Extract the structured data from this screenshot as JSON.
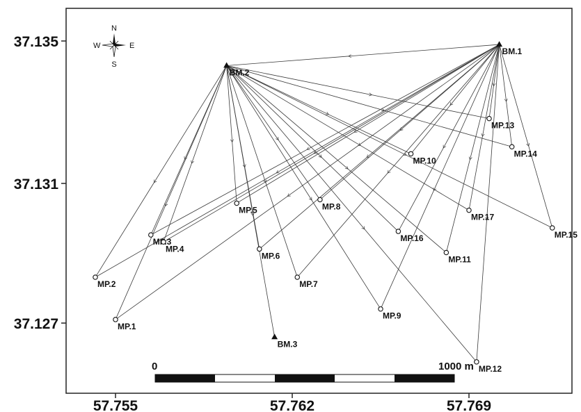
{
  "axes": {
    "x_ticks": [
      "57.755",
      "57.762",
      "57.769"
    ],
    "y_ticks": [
      "37.135",
      "37.131",
      "37.127"
    ]
  },
  "compass": {
    "north": "N",
    "south": "S",
    "east": "E",
    "west": "W",
    "icon": "compass-rose-icon"
  },
  "scale_bar": {
    "start_label": "0",
    "end_label": "1000 m",
    "segments": 5
  },
  "benchmarks": [
    {
      "id": "bm1",
      "label": "BM.1",
      "lon": 57.7702,
      "lat": 37.1349
    },
    {
      "id": "bm2",
      "label": "BM.2",
      "lon": 57.7594,
      "lat": 37.1343
    },
    {
      "id": "bm3",
      "label": "BM.3",
      "lon": 57.7613,
      "lat": 37.1266
    }
  ],
  "monitoring_points": [
    {
      "id": "mp1",
      "label": "MP.1",
      "lon": 57.755,
      "lat": 37.1271
    },
    {
      "id": "mp2",
      "label": "MP.2",
      "lon": 57.7542,
      "lat": 37.1283
    },
    {
      "id": "mp3",
      "label": "MP.3",
      "lon": 57.7564,
      "lat": 37.1295
    },
    {
      "id": "mp4",
      "label": "MP.4",
      "lon": 57.7569,
      "lat": 37.1293
    },
    {
      "id": "mp5",
      "label": "MP.5",
      "lon": 57.7598,
      "lat": 37.1304
    },
    {
      "id": "mp6",
      "label": "MP.6",
      "lon": 57.7607,
      "lat": 37.1291
    },
    {
      "id": "mp7",
      "label": "MP.7",
      "lon": 57.7622,
      "lat": 37.1283
    },
    {
      "id": "mp8",
      "label": "MP.8",
      "lon": 57.7631,
      "lat": 37.1305
    },
    {
      "id": "mp9",
      "label": "MP.9",
      "lon": 57.7655,
      "lat": 37.1274
    },
    {
      "id": "mp10",
      "label": "MP.10",
      "lon": 57.7667,
      "lat": 37.1318
    },
    {
      "id": "mp11",
      "label": "MP.11",
      "lon": 57.7681,
      "lat": 37.129
    },
    {
      "id": "mp12",
      "label": "MP.12",
      "lon": 57.7693,
      "lat": 37.1259
    },
    {
      "id": "mp13",
      "label": "MP.13",
      "lon": 57.7698,
      "lat": 37.1328
    },
    {
      "id": "mp14",
      "label": "MP.14",
      "lon": 57.7707,
      "lat": 37.132
    },
    {
      "id": "mp15",
      "label": "MP.15",
      "lon": 57.7723,
      "lat": 37.1297
    },
    {
      "id": "mp16",
      "label": "MP.16",
      "lon": 57.7662,
      "lat": 37.1296
    },
    {
      "id": "mp17",
      "label": "MP.17",
      "lon": 57.769,
      "lat": 37.1302
    }
  ]
}
